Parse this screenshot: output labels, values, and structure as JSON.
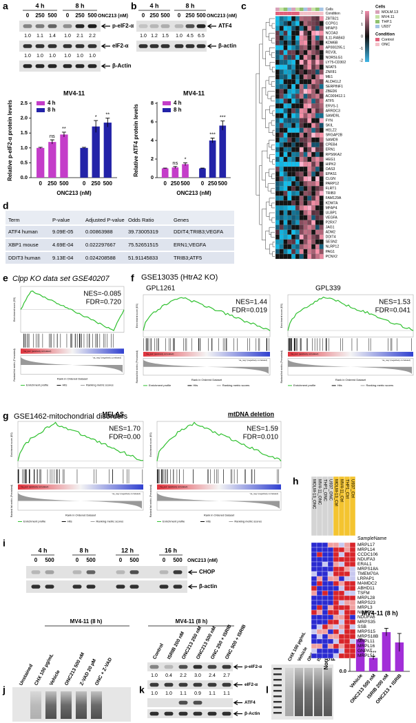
{
  "a": {
    "letter": "a",
    "times": [
      "4 h",
      "8 h"
    ],
    "doses": [
      "0",
      "250",
      "500",
      "0",
      "250",
      "500"
    ],
    "treatment": "ONC213 (nM)",
    "rows": [
      {
        "label": "p-eIF2-α",
        "quant": [
          "1.0",
          "1.1",
          "1.4",
          "1.0",
          "2.1",
          "2.2"
        ]
      },
      {
        "label": "eIF2-α",
        "quant": [
          "1.0",
          "1.0",
          "1.0",
          "1.0",
          "1.0",
          "1.0"
        ]
      },
      {
        "label": "β-Actin"
      }
    ],
    "chart": {
      "title": "MV4-11",
      "ylabel": [
        "Relative p-eIF2-α protein levels"
      ],
      "xlabel": "ONC213 (nM)",
      "categories": [
        "0",
        "250",
        "500"
      ],
      "ylim": [
        0,
        2.5
      ],
      "yticks": [
        {
          "value": 0,
          "label": "0.0"
        },
        {
          "value": 0.5,
          "label": "0.5"
        },
        {
          "value": 1,
          "label": "1.0"
        },
        {
          "value": 1.5,
          "label": "1.5"
        },
        {
          "value": 2,
          "label": "2.0"
        },
        {
          "value": 2.5,
          "label": "2.5"
        }
      ],
      "series": [
        {
          "name": "4 h",
          "color": "#c43dc9",
          "values": [
            1,
            1.2,
            1.45
          ],
          "errors": [
            0.02,
            0.07,
            0.08
          ],
          "sig": [
            null,
            "ns",
            "**"
          ]
        },
        {
          "name": "8 h",
          "color": "#2323a8",
          "values": [
            1,
            1.72,
            1.85
          ],
          "errors": [
            0.02,
            0.2,
            0.15
          ],
          "sig": [
            null,
            "*",
            "**"
          ]
        }
      ]
    }
  },
  "b": {
    "letter": "b",
    "times": [
      "4 h",
      "8 h"
    ],
    "doses": [
      "0",
      "250",
      "500",
      "0",
      "250",
      "500"
    ],
    "treatment": "ONC213 (nM)",
    "rows": [
      {
        "label": "ATF4",
        "quant": [
          "1.0",
          "1.2",
          "1.5",
          "1.0",
          "4.5",
          "6.5"
        ]
      },
      {
        "label": "β-actin"
      }
    ],
    "chart": {
      "title": "MV4-11",
      "ylabel": [
        "Relative ATF4 protein levels"
      ],
      "xlabel": "ONC213 (nM)",
      "categories": [
        "0",
        "250",
        "500"
      ],
      "ylim": [
        0,
        8
      ],
      "yticks": [
        0,
        2,
        4,
        6,
        8
      ],
      "series": [
        {
          "name": "4 h",
          "color": "#c43dc9",
          "values": [
            1,
            1.1,
            1.45
          ],
          "errors": [
            0.03,
            0.1,
            0.15
          ],
          "sig": [
            null,
            "ns",
            "*"
          ]
        },
        {
          "name": "8 h",
          "color": "#2323a8",
          "values": [
            1,
            4.0,
            5.6
          ],
          "errors": [
            0.03,
            0.25,
            0.5
          ],
          "sig": [
            null,
            "***",
            "***"
          ]
        }
      ]
    }
  },
  "c": {
    "letter": "c",
    "header": [
      "Cells",
      "Condition"
    ],
    "legend": {
      "cells_title": "Cells",
      "cells": [
        "MOLM.13",
        "MV4.11",
        "THP.1",
        "U937"
      ],
      "condition_title": "Condition",
      "conditions": [
        "Control",
        "ONC"
      ],
      "scale": [
        2,
        1,
        0,
        -1,
        -2
      ]
    },
    "genes": [
      "ZBTB21",
      "CCPG1",
      "MFAP3",
      "NCOA3",
      "IL11-RAB43",
      "KDM6B",
      "AP000295.1",
      "REV3L",
      "NORSLG1",
      "LY75-CD302",
      "NFAT5",
      "ZNF81",
      "ME1",
      "ALDH1L2",
      "SERPINF1",
      "ZBED6",
      "AC009412.1",
      "ATF5",
      "ERVS-1",
      "ARRDC3",
      "SAMD9L",
      "FYN",
      "SKIL",
      "HELZ2",
      "SRGAP2B",
      "SAMD9",
      "CPEB4",
      "ERN1",
      "RPS6KA2",
      "HEG1",
      "HIPK2",
      "OAS3",
      "EPAS1",
      "CLGN",
      "PARP12",
      "FLRT1",
      "TRIB3",
      "FAM129A",
      "KDM7A",
      "MFAP4",
      "ULBP1",
      "VEGFA",
      "P2RX7",
      "JAG1",
      "ADM2",
      "DDIT4",
      "SESN2",
      "NLRP12",
      "PAG1",
      "PCNX2"
    ]
  },
  "d": {
    "letter": "d",
    "columns": [
      "Term",
      "P-value",
      "Adjusted P-value",
      "Odds Ratio",
      "Genes"
    ],
    "rows": [
      [
        "ATF4 human",
        "9.09E-05",
        "0.00863988",
        "39.73005319",
        "DDIT4;TRIB3;VEGFA"
      ],
      [
        "XBP1 mouse",
        "4.69E-04",
        "0.022297667",
        "75.52651515",
        "ERN1;VEGFA"
      ],
      [
        "DDIT3 human",
        "9.13E-04",
        "0.024208588",
        "51.91145833",
        "TRIB3;ATF5"
      ]
    ]
  },
  "gsea_labels": {
    "es": "Enrichment score (ES)",
    "metric": "Ranked list metric (Preranked)",
    "rank": "Rank in Ordered Dataset",
    "pos": "'na_pos' (positively correlated)",
    "neg": "'na_neg' (negatively correlated)",
    "legend": [
      "Enrichment profile",
      "Hits",
      "Ranking metric scores"
    ]
  },
  "e": {
    "letter": "e",
    "title": "Clpp KO data set GSE40207",
    "plots": [
      {
        "nes": "NES=-0.085",
        "fdr": "FDR=0.720"
      }
    ]
  },
  "f": {
    "letter": "f",
    "title": "GSE13035 (HtrA2 KO)",
    "plots": [
      {
        "subtitle": "GPL1261",
        "nes": "NES=1.44",
        "fdr": "FDR=0.019"
      },
      {
        "subtitle": "GPL339",
        "nes": "NES=1.53",
        "fdr": "FDR=0.041"
      }
    ]
  },
  "g": {
    "letter": "g",
    "title": "GSE1462-mitochondrial disorders",
    "plots": [
      {
        "subtitle": "MELAS",
        "nes": "NES=1.70",
        "fdr": "FDR=0.00"
      },
      {
        "subtitle": "mtDNA deletion",
        "nes": "NES=1.59",
        "fdr": "FDR=0.010"
      }
    ]
  },
  "h": {
    "letter": "h",
    "samples": [
      "MOLM-13_ONC",
      "MV4-11_ONC",
      "THP1_ONC",
      "U937_ONC",
      "MOLM-13_Ctrl",
      "MV4-11_Ctrl",
      "THP1_Ctrl",
      "U937_Ctrl"
    ],
    "header": "SampleName",
    "genes": [
      "MRPL17",
      "MRPL14",
      "CCDC106",
      "NDUFA3",
      "ERAL1",
      "MRPS18A",
      "TMEM70A",
      "LRPAP1",
      "MAMDC2",
      "ABHD11",
      "TSFM",
      "MRPL28",
      "MRPS23",
      "MRPL3",
      "NCOR1",
      "NDUFA6",
      "MRPS35",
      "SSB",
      "MRPS15",
      "MRPS18B",
      "MRPL11",
      "MRPL16",
      "GNPAT",
      "MRPL51"
    ]
  },
  "i": {
    "letter": "i",
    "times": [
      "4 h",
      "8 h",
      "12 h",
      "16 h"
    ],
    "doses": [
      "0",
      "500",
      "0",
      "500",
      "0",
      "500",
      "0",
      "500"
    ],
    "treatment": "ONC213 (nM)",
    "rows": [
      {
        "label": "CHOP"
      },
      {
        "label": "β-actin"
      }
    ]
  },
  "j": {
    "letter": "j",
    "title": "MV4-11 (8 h)",
    "lanes": [
      "Unstained",
      "CHX 100 µg/mL",
      "Vehicle",
      "ONC213 500 nM",
      "Z-VAD 20 µM",
      "ONC + Z-VAD"
    ]
  },
  "k": {
    "letter": "k",
    "title": "MV4-11 (8 h)",
    "lanes": [
      "Control",
      "ISRIB 200 nM",
      "ONC213 250 nM",
      "ONC213 500 nM",
      "ONC 250 + ISRIB",
      "ONC 500 + ISRIB"
    ],
    "rows": [
      {
        "label": "p-eIF2-α",
        "quant": [
          "1.0",
          "0.4",
          "2.2",
          "3.0",
          "2.4",
          "2.7"
        ]
      },
      {
        "label": "eIF2-α",
        "quant": [
          "1.0",
          "1.0",
          "1.1",
          "0.9",
          "1.1",
          "1.1"
        ]
      },
      {
        "label": "ATF4"
      },
      {
        "label": "β-Actin"
      }
    ]
  },
  "l": {
    "letter": "l",
    "lanes": [
      "CHX 100 µg/mL",
      "Vehicle",
      "ONC213 500 nM",
      "ISRIB 200 nM",
      "ONC + ISRIB"
    ],
    "chart": {
      "title": "MV4-11 (8 h)",
      "ylabel": [
        "Normalized Ratio",
        "puro/ponc"
      ],
      "categories": [
        "Vehicle",
        "ONC213 500 nM",
        "ISRIB 200 nM",
        "ONC213 + ISRIB"
      ],
      "ylim": [
        0,
        1.5
      ],
      "yticks": [
        {
          "value": 0,
          "label": "0.0"
        },
        {
          "value": 0.5,
          "label": "0.5"
        },
        {
          "value": 1,
          "label": "1.0"
        },
        {
          "value": 1.5,
          "label": "1.5"
        }
      ],
      "series": [
        {
          "color": "#a22fd8",
          "values": [
            1.0,
            0.42,
            1.22,
            0.9
          ],
          "errors": [
            0.01,
            0.05,
            0.12,
            0.28
          ],
          "sig": [
            null,
            "***",
            null,
            null
          ]
        }
      ]
    }
  }
}
